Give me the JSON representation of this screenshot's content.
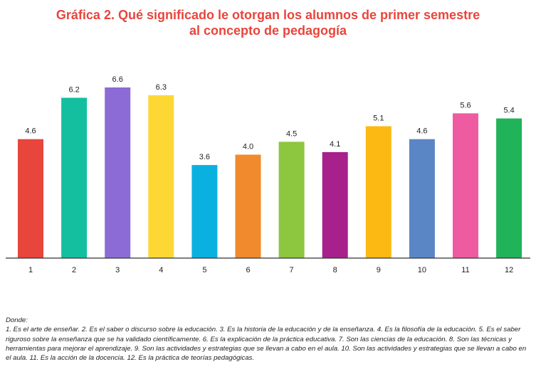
{
  "title_lines": [
    "Gráfica 2. Qué significado le otorgan los alumnos de primer semestre",
    "al concepto de pedagogía"
  ],
  "note": {
    "heading": "Donde:",
    "text": "1. Es el arte de enseñar. 2. Es el saber o discurso sobre la educación. 3. Es la historia de la educación y de la enseñanza. 4. Es la filosofía de la educación. 5. Es el saber riguroso sobre la enseñanza que se ha validado científicamente. 6. Es la explicación de la práctica educativa. 7. Son las ciencias de la educación. 8. Son las técnicas y herramientas para mejorar el aprendizaje. 9. Son las actividades y estrategias que se llevan a cabo en el aula. 10. Son las actividades y estrategias que se llevan a cabo en el aula. 11. Es la acción de la docencia. 12. Es la práctica de teorías pedagógicas."
  },
  "colors": {
    "title": "#e8453c",
    "bars": [
      "#e8453c",
      "#14bf9f",
      "#8c6bd6",
      "#fdd835",
      "#0ab1e0",
      "#f08a2c",
      "#8dc63f",
      "#a6218c",
      "#fdb913",
      "#5b86c6",
      "#ef5ba1",
      "#20b35a"
    ]
  },
  "chart_data": {
    "type": "bar",
    "title": "Gráfica 2. Qué significado le otorgan los alumnos de primer semestre al concepto de pedagogía",
    "categories": [
      "1",
      "2",
      "3",
      "4",
      "5",
      "6",
      "7",
      "8",
      "9",
      "10",
      "11",
      "12"
    ],
    "values": [
      4.6,
      6.2,
      6.6,
      6.3,
      3.6,
      4.0,
      4.5,
      4.1,
      5.1,
      4.6,
      5.6,
      5.4
    ],
    "value_labels": [
      "4.6",
      "6.2",
      "6.6",
      "6.3",
      "3.6",
      "4.0",
      "4.5",
      "4.1",
      "5.1",
      "4.6",
      "5.6",
      "5.4"
    ],
    "ylim": [
      0,
      6.6
    ],
    "grid": false,
    "legend": "none"
  }
}
